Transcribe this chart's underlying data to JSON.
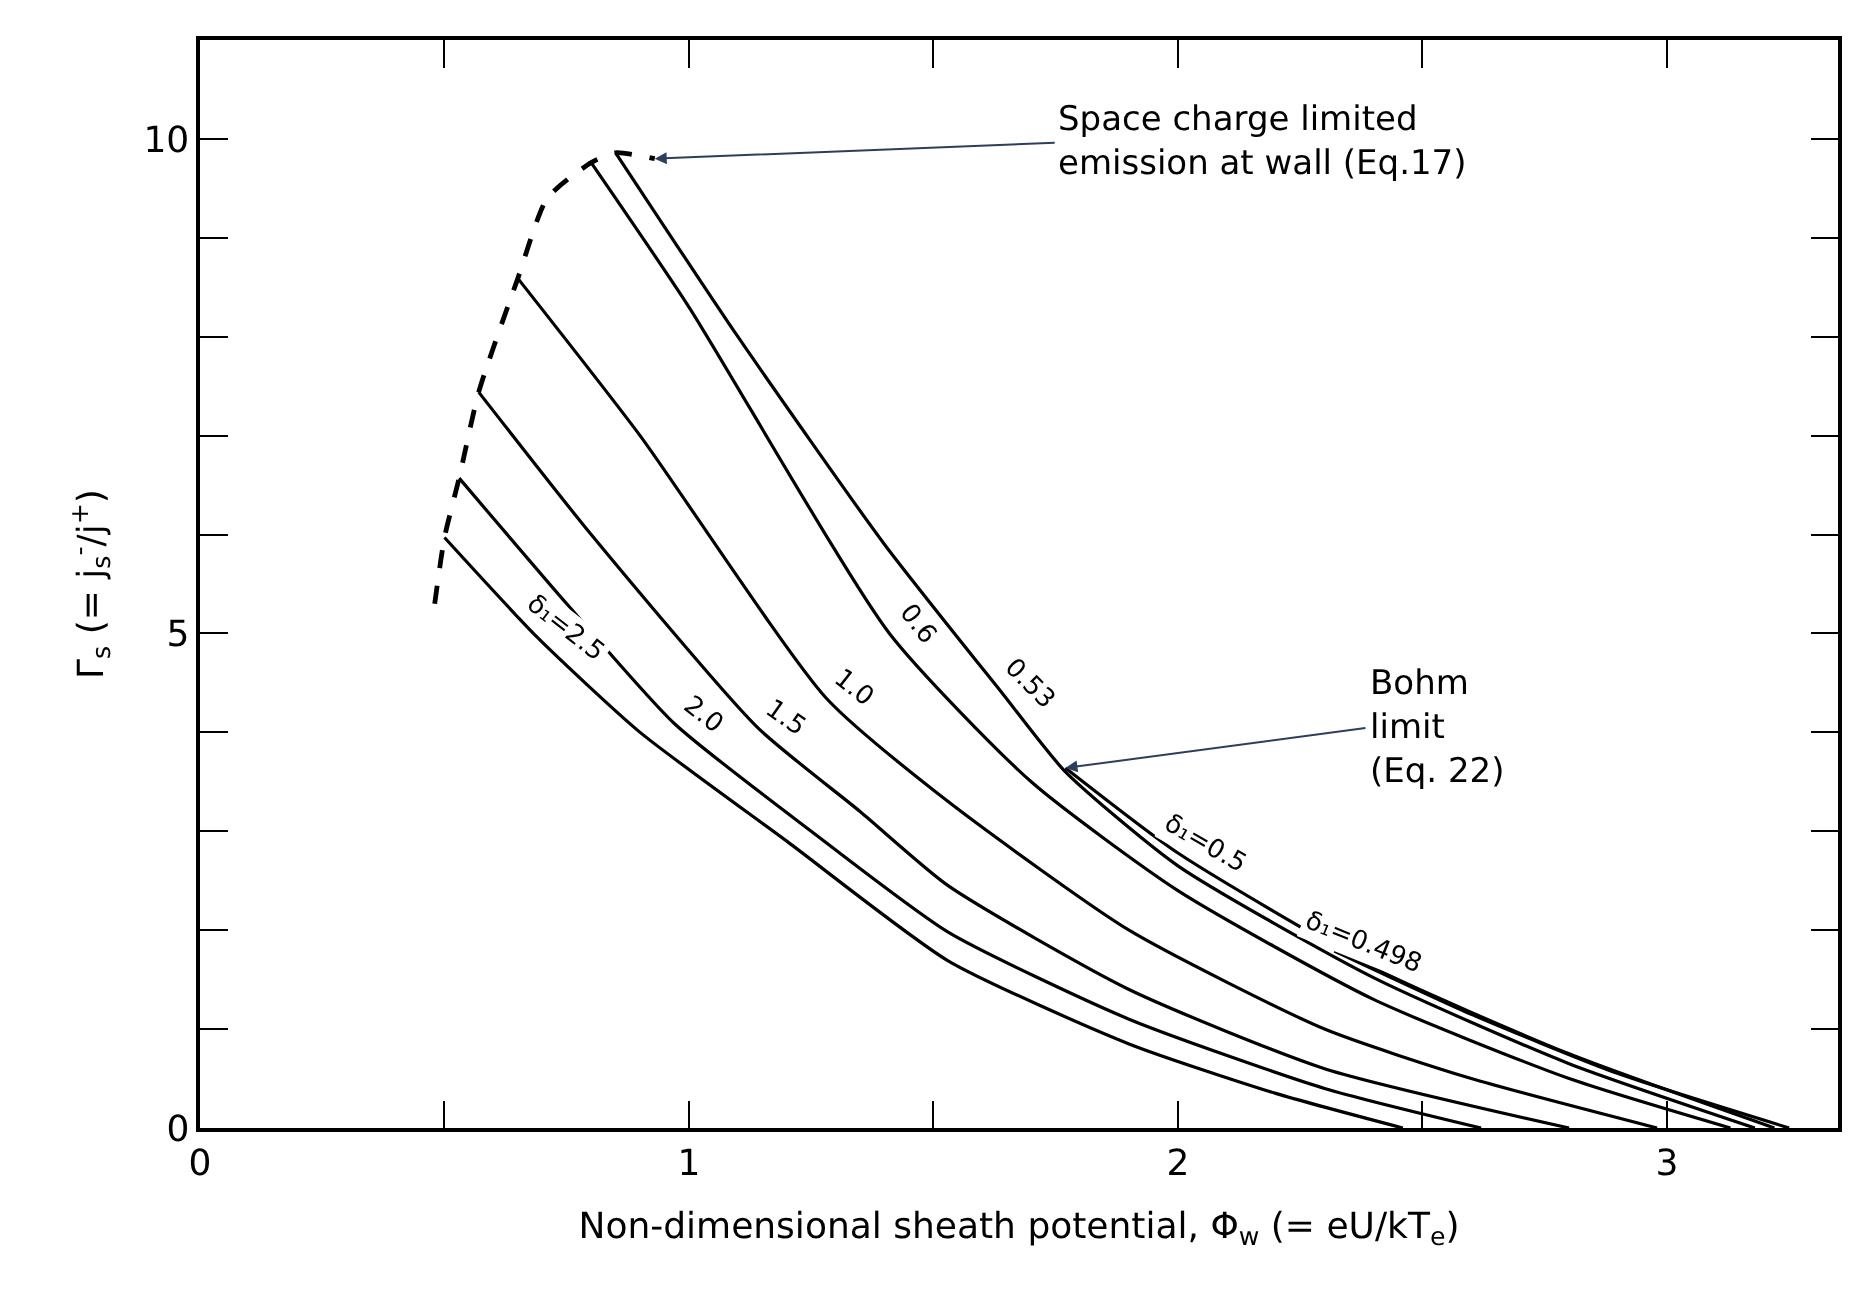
{
  "chart_data": {
    "type": "line",
    "xlabel": "Non-dimensional sheath potential, Φ$_{w}$ (= eU/kT$_{e}$)",
    "ylabel": "Γ$_{s}$ (= j$_{s}$$^{-}$/j$^{+}$)",
    "xlim": [
      0,
      3.35
    ],
    "ylim": [
      0,
      11
    ],
    "xticks": [
      0,
      {
        "value": 0.5,
        "label": null
      },
      1,
      {
        "value": 1.5,
        "label": null
      },
      2,
      {
        "value": 2.5,
        "label": null
      },
      3
    ],
    "yticks": [
      0,
      {
        "value": 1,
        "label": null
      },
      {
        "value": 2,
        "label": null
      },
      {
        "value": 3,
        "label": null
      },
      {
        "value": 4,
        "label": null
      },
      5,
      {
        "value": 6,
        "label": null
      },
      {
        "value": 7,
        "label": null
      },
      {
        "value": 8,
        "label": null
      },
      {
        "value": 9,
        "label": null
      },
      10
    ],
    "legend": false,
    "marker": "none",
    "line_style": "solid",
    "series": [
      {
        "name": "δ₁=2.5",
        "color": "#000000",
        "x": [
          0.5,
          0.69,
          0.9,
          1.2,
          1.53,
          1.9,
          2.2,
          2.46
        ],
        "values": [
          5.97,
          4.96,
          4.0,
          2.9,
          1.69,
          0.85,
          0.35,
          0
        ]
      },
      {
        "name": "2.0",
        "color": "#000000",
        "x": [
          0.53,
          0.75,
          0.97,
          1.25,
          1.53,
          1.9,
          2.3,
          2.62
        ],
        "values": [
          6.57,
          5.3,
          4.09,
          3.0,
          1.98,
          1.1,
          0.4,
          0
        ]
      },
      {
        "name": "1.5",
        "color": "#000000",
        "x": [
          0.57,
          0.8,
          1.14,
          1.35,
          1.53,
          1.9,
          2.3,
          2.8
        ],
        "values": [
          7.44,
          6.0,
          4.05,
          3.2,
          2.45,
          1.4,
          0.6,
          0
        ]
      },
      {
        "name": "1.0",
        "color": "#000000",
        "x": [
          0.65,
          0.9,
          1.28,
          1.53,
          1.9,
          2.3,
          2.6,
          2.98
        ],
        "values": [
          8.59,
          7.0,
          4.35,
          3.3,
          2.0,
          1.0,
          0.5,
          0
        ]
      },
      {
        "name": "0.6",
        "color": "#000000",
        "x": [
          0.8,
          1.0,
          1.41,
          1.7,
          2.0,
          2.4,
          2.8,
          3.13
        ],
        "values": [
          9.76,
          8.3,
          5.0,
          3.5,
          2.4,
          1.3,
          0.5,
          0
        ]
      },
      {
        "name": "0.53",
        "color": "#000000",
        "x": [
          0.85,
          1.1,
          1.4,
          1.64,
          1.77,
          2.0,
          2.4,
          2.8,
          3.18
        ],
        "values": [
          9.86,
          8.0,
          5.9,
          4.4,
          3.6,
          2.65,
          1.52,
          0.65,
          0
        ]
      },
      {
        "name": "δ₁=0.5",
        "color": "#000000",
        "x": [
          1.77,
          2.0,
          2.4,
          2.8,
          3.22
        ],
        "values": [
          3.64,
          2.78,
          1.62,
          0.75,
          0
        ]
      },
      {
        "name": "δ₁=0.498",
        "color": "#000000",
        "x": [
          2.32,
          2.6,
          2.9,
          3.25
        ],
        "values": [
          1.79,
          1.15,
          0.55,
          0
        ]
      },
      {
        "color": "#000000",
        "line_style": "dashed",
        "x": [
          0.48,
          0.5,
          0.53,
          0.57,
          0.65,
          0.71,
          0.8,
          0.85,
          0.93
        ],
        "values": [
          5.3,
          5.97,
          6.57,
          7.44,
          8.59,
          9.4,
          9.76,
          9.86,
          9.8
        ]
      }
    ],
    "annotations": [
      {
        "text": "Space charge limited\nemission at wall (Eq.17)",
        "x": 0.93,
        "y": 9.8
      },
      {
        "text": "Bohm\nlimit\n(Eq. 22)",
        "x": 1.77,
        "y": 3.64
      }
    ]
  }
}
